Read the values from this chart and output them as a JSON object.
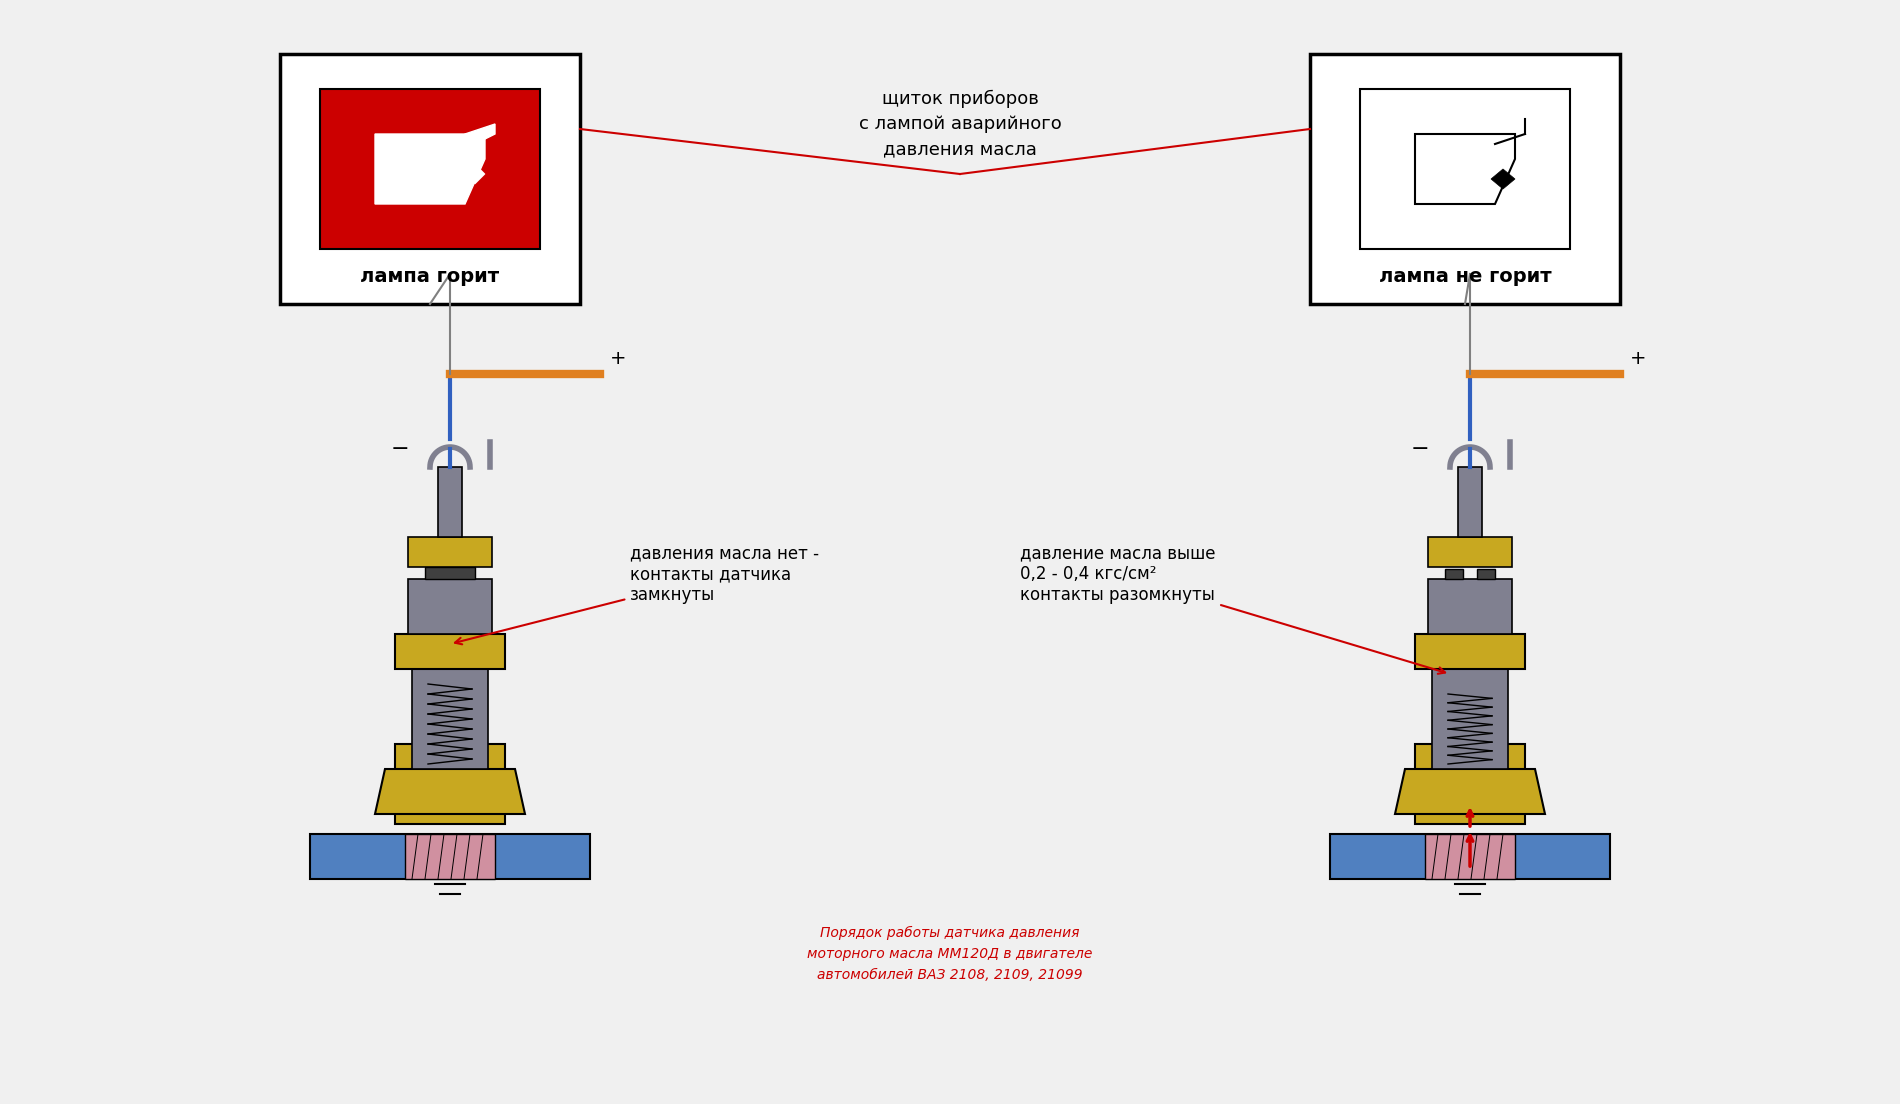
{
  "bg_color": "#f0f0f0",
  "title": "",
  "left_label": "лампа горит",
  "right_label": "лампа не горит",
  "center_top_text": "щиток приборов\nс лампой аварийного\nдавления масла",
  "left_sensor_text": "давления масла нет -\nконтакты датчика\nзамкнуты",
  "right_sensor_text": "давление масла выше\n0,2 - 0,4 кгс/см²\nконтакты разомкнуты",
  "bottom_text": "Порядок работы датчика давления\nмоторного масла ММ120Д в двигателе\nавтомобилей ВАЗ 2108, 2109, 21099",
  "left_box_bg": "#cc0000",
  "right_box_bg": "#ffffff",
  "wire_color_blue": "#3060c0",
  "wire_color_orange": "#e08020",
  "sensor_gold": "#c8a820",
  "sensor_gray": "#808090",
  "sensor_blue": "#5080c0",
  "sensor_pink": "#d090a0",
  "sensor_dark": "#404040",
  "arrow_red": "#cc0000",
  "line_red": "#cc0000"
}
